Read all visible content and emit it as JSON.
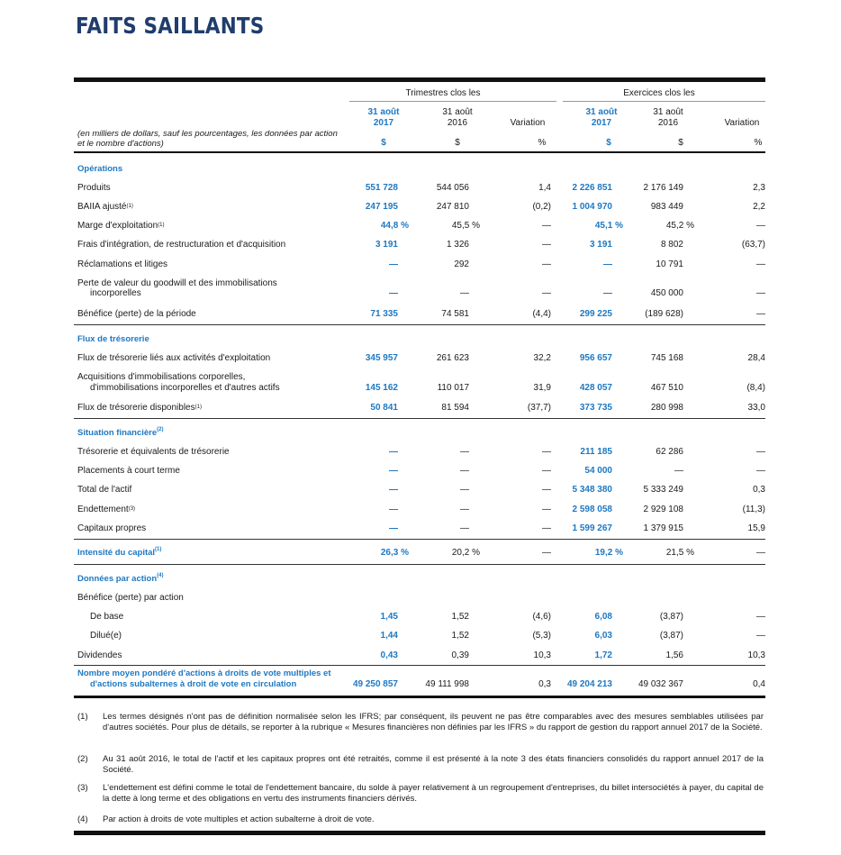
{
  "title": "FAITS SAILLANTS",
  "header": {
    "group_quarter": "Trimestres clos les",
    "group_year": "Exercices clos les",
    "note": "(en milliers de dollars, sauf les pourcentages, les données par action et le nombre d'actions)",
    "cols": [
      {
        "l1": "31 août",
        "l2": "2017",
        "unit": "$"
      },
      {
        "l1": "31 août",
        "l2": "2016",
        "unit": "$"
      },
      {
        "l1": "",
        "l2": "Variation",
        "unit": "%"
      },
      {
        "l1": "31 août",
        "l2": "2017",
        "unit": "$"
      },
      {
        "l1": "31 août",
        "l2": "2016",
        "unit": "$"
      },
      {
        "l1": "",
        "l2": "Variation",
        "unit": "%"
      }
    ]
  },
  "sections": {
    "operations": "Opérations",
    "flux": "Flux de trésorerie",
    "situation": "Situation financière",
    "intensite": "Intensité du capital",
    "donnees": "Données par action",
    "nombre": "Nombre moyen pondéré d'actions à droits de vote multiples et",
    "nombre2": "d'actions subalternes à droit de vote en circulation"
  },
  "rows": {
    "produits": {
      "label": "Produits",
      "v": [
        "551 728",
        "544 056",
        "1,4",
        "2 226 851",
        "2 176 149",
        "2,3"
      ]
    },
    "baiia": {
      "label": "BAIIA ajusté",
      "v": [
        "247 195",
        "247 810",
        "(0,2)",
        "1 004 970",
        "983 449",
        "2,2"
      ]
    },
    "marge": {
      "label": "Marge d'exploitation",
      "v": [
        "44,8 %",
        "45,5 %",
        "—",
        "45,1 %",
        "45,2 %",
        "—"
      ]
    },
    "frais": {
      "label": "Frais d'intégration, de restructuration et d'acquisition",
      "v": [
        "3 191",
        "1 326",
        "—",
        "3 191",
        "8 802",
        "(63,7)"
      ]
    },
    "reclam": {
      "label": "Réclamations et litiges",
      "v": [
        "—",
        "292",
        "—",
        "—",
        "10 791",
        "—"
      ]
    },
    "perte": {
      "label": "Perte de valeur du goodwill et des immobilisations",
      "label2": "incorporelles",
      "v": [
        "—",
        "—",
        "—",
        "—",
        "450 000",
        "—"
      ]
    },
    "benefice": {
      "label": "Bénéfice (perte) de la période",
      "v": [
        "71 335",
        "74 581",
        "(4,4)",
        "299 225",
        "(189 628)",
        "—"
      ]
    },
    "fluxexp": {
      "label": "Flux de trésorerie liés aux activités d'exploitation",
      "v": [
        "345 957",
        "261 623",
        "32,2",
        "956 657",
        "745 168",
        "28,4"
      ]
    },
    "acq": {
      "label": "Acquisitions d'immobilisations corporelles,",
      "label2": "d'immobilisations incorporelles et d'autres actifs",
      "v": [
        "145 162",
        "110 017",
        "31,9",
        "428 057",
        "467 510",
        "(8,4)"
      ]
    },
    "fluxdisp": {
      "label": "Flux de trésorerie disponibles",
      "v": [
        "50 841",
        "81 594",
        "(37,7)",
        "373 735",
        "280 998",
        "33,0"
      ]
    },
    "treso": {
      "label": "Trésorerie et équivalents de trésorerie",
      "v": [
        "—",
        "—",
        "—",
        "211 185",
        "62 286",
        "—"
      ]
    },
    "placements": {
      "label": "Placements à court terme",
      "v": [
        "—",
        "—",
        "—",
        "54 000",
        "—",
        "—"
      ]
    },
    "actif": {
      "label": "Total de l'actif",
      "v": [
        "—",
        "—",
        "—",
        "5 348 380",
        "5 333 249",
        "0,3"
      ]
    },
    "endettement": {
      "label": "Endettement",
      "v": [
        "—",
        "—",
        "—",
        "2 598 058",
        "2 929 108",
        "(11,3)"
      ]
    },
    "capitaux": {
      "label": "Capitaux propres",
      "v": [
        "—",
        "—",
        "—",
        "1 599 267",
        "1 379 915",
        "15,9"
      ]
    },
    "intensite": {
      "v": [
        "26,3 %",
        "20,2 %",
        "—",
        "19,2 %",
        "21,5 %",
        "—"
      ]
    },
    "benaction": {
      "label": "Bénéfice (perte) par action"
    },
    "debase": {
      "label": "De base",
      "v": [
        "1,45",
        "1,52",
        "(4,6)",
        "6,08",
        "(3,87)",
        "—"
      ]
    },
    "dilue": {
      "label": "Dilué(e)",
      "v": [
        "1,44",
        "1,52",
        "(5,3)",
        "6,03",
        "(3,87)",
        "—"
      ]
    },
    "dividendes": {
      "label": "Dividendes",
      "v": [
        "0,43",
        "0,39",
        "10,3",
        "1,72",
        "1,56",
        "10,3"
      ]
    },
    "nombre": {
      "v": [
        "49 250 857",
        "49 111 998",
        "0,3",
        "49 204 213",
        "49 032 367",
        "0,4"
      ]
    }
  },
  "sups": {
    "s1": "(1)",
    "s2": "(2)",
    "s3": "(3)",
    "s4": "(4)"
  },
  "footnotes": [
    {
      "n": "(1)",
      "t": "Les termes désignés n'ont pas de définition normalisée selon les IFRS; par conséquent, ils peuvent ne pas être comparables avec des mesures semblables utilisées par d'autres sociétés. Pour plus de détails, se reporter à la rubrique « Mesures financières non définies par les IFRS » du rapport de gestion du rapport annuel 2017 de la Société."
    },
    {
      "n": "(2)",
      "t": "Au 31 août 2016, le total de l'actif et les capitaux propres ont été retraités, comme il est présenté à la note 3 des états financiers consolidés du rapport annuel 2017 de la Société."
    },
    {
      "n": "(3)",
      "t": "L'endettement est défini comme le total de l'endettement bancaire, du solde à payer relativement à un regroupement d'entreprises, du billet intersociétés à payer, du capital de la dette à long terme et des obligations en vertu des instruments financiers dérivés."
    },
    {
      "n": "(4)",
      "t": "Par action à droits de vote multiples et action subalterne à droit de vote."
    }
  ]
}
